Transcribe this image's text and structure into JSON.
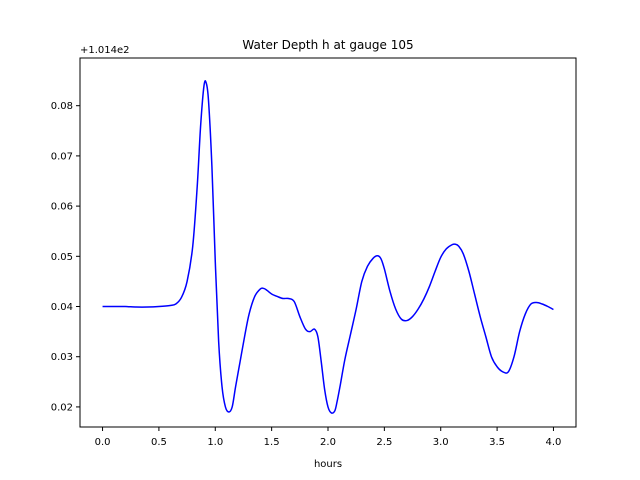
{
  "chart_data": {
    "type": "line",
    "title": "Water Depth h at gauge 105",
    "xlabel": "hours",
    "ylabel": "",
    "y_offset_label": "+1.014e2",
    "y_offset": 101.4,
    "xlim": [
      -0.2,
      4.2
    ],
    "ylim": [
      0.016,
      0.0895
    ],
    "x_ticks": [
      0.0,
      0.5,
      1.0,
      1.5,
      2.0,
      2.5,
      3.0,
      3.5,
      4.0
    ],
    "x_tick_labels": [
      "0.0",
      "0.5",
      "1.0",
      "1.5",
      "2.0",
      "2.5",
      "3.0",
      "3.5",
      "4.0"
    ],
    "y_ticks": [
      0.02,
      0.03,
      0.04,
      0.05,
      0.06,
      0.07,
      0.08
    ],
    "y_tick_labels": [
      "0.02",
      "0.03",
      "0.04",
      "0.05",
      "0.06",
      "0.07",
      "0.08"
    ],
    "grid": false,
    "legend": "none",
    "series": [
      {
        "color": "#0000ff",
        "x": [
          0.0,
          0.1,
          0.2,
          0.3,
          0.4,
          0.5,
          0.6,
          0.65,
          0.7,
          0.75,
          0.8,
          0.84,
          0.87,
          0.9,
          0.92,
          0.94,
          0.97,
          1.0,
          1.03,
          1.06,
          1.09,
          1.12,
          1.15,
          1.18,
          1.22,
          1.26,
          1.3,
          1.35,
          1.4,
          1.43,
          1.46,
          1.5,
          1.55,
          1.6,
          1.65,
          1.7,
          1.75,
          1.8,
          1.84,
          1.88,
          1.91,
          1.94,
          1.97,
          2.0,
          2.03,
          2.06,
          2.08,
          2.11,
          2.15,
          2.2,
          2.25,
          2.3,
          2.35,
          2.4,
          2.44,
          2.47,
          2.5,
          2.55,
          2.6,
          2.65,
          2.7,
          2.75,
          2.8,
          2.85,
          2.9,
          2.95,
          3.0,
          3.05,
          3.1,
          3.13,
          3.16,
          3.2,
          3.25,
          3.3,
          3.35,
          3.4,
          3.45,
          3.5,
          3.55,
          3.6,
          3.65,
          3.7,
          3.75,
          3.8,
          3.85,
          3.9,
          3.95,
          4.0
        ],
        "y": [
          0.04,
          0.04,
          0.04,
          0.0399,
          0.0399,
          0.04,
          0.0402,
          0.0405,
          0.0418,
          0.045,
          0.052,
          0.064,
          0.076,
          0.084,
          0.0845,
          0.081,
          0.068,
          0.049,
          0.033,
          0.024,
          0.02,
          0.019,
          0.02,
          0.024,
          0.029,
          0.034,
          0.0385,
          0.042,
          0.0435,
          0.0436,
          0.0432,
          0.0425,
          0.042,
          0.0416,
          0.0416,
          0.041,
          0.038,
          0.0355,
          0.035,
          0.0355,
          0.034,
          0.029,
          0.0235,
          0.02,
          0.0188,
          0.0192,
          0.021,
          0.0245,
          0.0295,
          0.0345,
          0.0395,
          0.045,
          0.048,
          0.0496,
          0.0501,
          0.0495,
          0.0475,
          0.043,
          0.0395,
          0.0375,
          0.0372,
          0.038,
          0.0395,
          0.0415,
          0.044,
          0.047,
          0.0498,
          0.0515,
          0.0523,
          0.0524,
          0.052,
          0.0505,
          0.047,
          0.0425,
          0.038,
          0.034,
          0.03,
          0.028,
          0.027,
          0.027,
          0.03,
          0.035,
          0.0385,
          0.0405,
          0.0408,
          0.0405,
          0.04,
          0.0394
        ]
      }
    ]
  }
}
